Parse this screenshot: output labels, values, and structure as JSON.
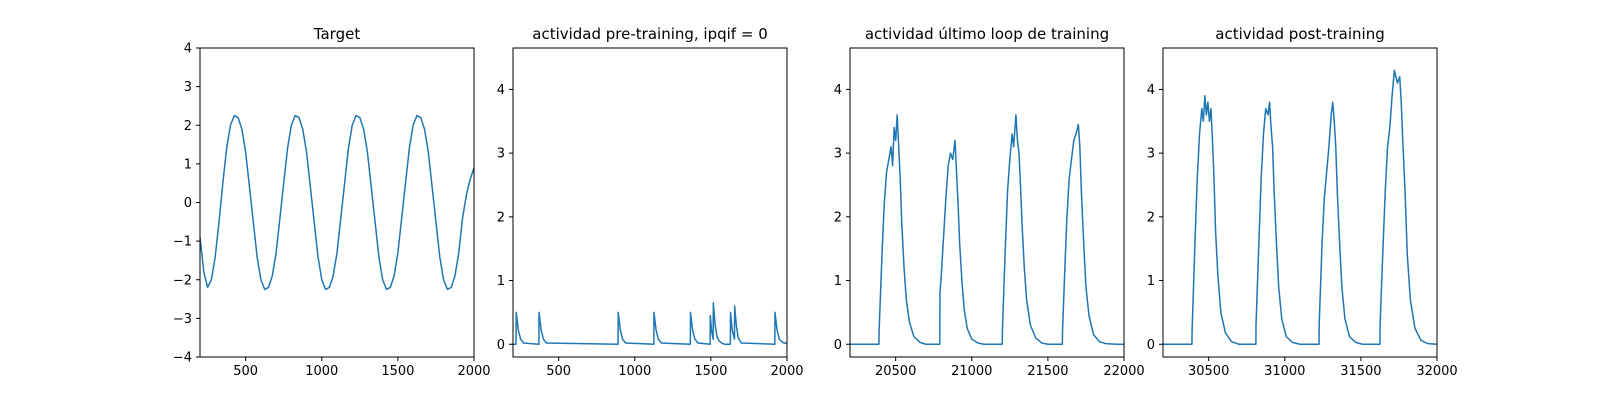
{
  "colors": {
    "series": "#1f77b4",
    "axis": "#000000",
    "background": "#ffffff"
  },
  "chart_data": [
    {
      "type": "line",
      "title": "Target",
      "xlabel": "",
      "ylabel": "",
      "xlim": [
        200,
        2000
      ],
      "ylim": [
        -4,
        4
      ],
      "xticks": [
        500,
        1000,
        1500,
        2000
      ],
      "yticks": [
        -4,
        -3,
        -2,
        -1,
        0,
        1,
        2,
        3,
        4
      ],
      "grid": false,
      "series": [
        {
          "x": [
            200,
            225,
            250,
            275,
            300,
            325,
            350,
            375,
            400,
            425,
            450,
            475,
            500,
            525,
            550,
            575,
            600,
            625,
            650,
            675,
            700,
            725,
            750,
            775,
            800,
            825,
            850,
            875,
            900,
            925,
            950,
            975,
            1000,
            1025,
            1050,
            1075,
            1100,
            1125,
            1150,
            1175,
            1200,
            1225,
            1250,
            1275,
            1300,
            1325,
            1350,
            1375,
            1400,
            1425,
            1450,
            1475,
            1500,
            1525,
            1550,
            1575,
            1600,
            1625,
            1650,
            1675,
            1700,
            1725,
            1750,
            1775,
            1800,
            1825,
            1850,
            1875,
            1900,
            1925,
            1950,
            1975,
            2000
          ],
          "y": [
            -0.9,
            -1.8,
            -2.2,
            -2.0,
            -1.4,
            -0.5,
            0.5,
            1.4,
            2.0,
            2.25,
            2.2,
            1.9,
            1.3,
            0.4,
            -0.5,
            -1.4,
            -2.0,
            -2.25,
            -2.2,
            -1.9,
            -1.3,
            -0.4,
            0.5,
            1.4,
            2.0,
            2.25,
            2.2,
            1.9,
            1.3,
            0.4,
            -0.5,
            -1.4,
            -2.0,
            -2.25,
            -2.2,
            -1.9,
            -1.3,
            -0.4,
            0.5,
            1.4,
            2.0,
            2.25,
            2.2,
            1.9,
            1.3,
            0.4,
            -0.5,
            -1.4,
            -2.0,
            -2.25,
            -2.2,
            -1.9,
            -1.3,
            -0.4,
            0.5,
            1.4,
            2.0,
            2.25,
            2.2,
            1.9,
            1.3,
            0.4,
            -0.5,
            -1.4,
            -2.0,
            -2.25,
            -2.2,
            -1.9,
            -1.3,
            -0.4,
            0.2,
            0.6,
            0.9
          ]
        }
      ]
    },
    {
      "type": "line",
      "title": "actividad pre-training, ipqif = 0",
      "xlabel": "",
      "ylabel": "",
      "xlim": [
        200,
        2000
      ],
      "ylim": [
        -0.2,
        4.65
      ],
      "xticks": [
        500,
        1000,
        1500,
        2000
      ],
      "yticks": [
        0,
        1,
        2,
        3,
        4
      ],
      "grid": false,
      "series": [
        {
          "x": [
            200,
            220,
            221,
            235,
            250,
            270,
            370,
            371,
            385,
            400,
            420,
            890,
            891,
            905,
            920,
            940,
            1125,
            1126,
            1140,
            1155,
            1175,
            1365,
            1366,
            1380,
            1395,
            1415,
            1495,
            1496,
            1505,
            1515,
            1516,
            1528,
            1540,
            1555,
            1570,
            1590,
            1628,
            1629,
            1640,
            1655,
            1656,
            1668,
            1680,
            1700,
            1920,
            1921,
            1935,
            1950,
            1970,
            2000
          ],
          "y": [
            0,
            0,
            0.5,
            0.22,
            0.08,
            0.02,
            0,
            0.5,
            0.22,
            0.08,
            0.02,
            0,
            0.5,
            0.22,
            0.08,
            0.02,
            0,
            0.5,
            0.22,
            0.08,
            0.02,
            0,
            0.5,
            0.22,
            0.08,
            0.02,
            0,
            0.45,
            0.2,
            0.08,
            0.65,
            0.3,
            0.12,
            0.05,
            0.02,
            0,
            0,
            0.5,
            0.22,
            0.08,
            0.6,
            0.28,
            0.1,
            0.02,
            0,
            0.5,
            0.22,
            0.08,
            0.03,
            0.01
          ]
        }
      ]
    },
    {
      "type": "line",
      "title": "actividad último loop de training",
      "xlabel": "",
      "ylabel": "",
      "xlim": [
        20200,
        22000
      ],
      "ylim": [
        -0.2,
        4.65
      ],
      "xticks": [
        20500,
        21000,
        21500,
        22000
      ],
      "yticks": [
        0,
        1,
        2,
        3,
        4
      ],
      "grid": false,
      "series": [
        {
          "x": [
            20200,
            20390,
            20391,
            20410,
            20425,
            20440,
            20455,
            20470,
            20480,
            20490,
            20500,
            20510,
            20520,
            20530,
            20540,
            20555,
            20570,
            20590,
            20620,
            20660,
            20700,
            20790,
            20791,
            20800,
            20815,
            20830,
            20845,
            20860,
            20875,
            20890,
            20900,
            20910,
            20920,
            20935,
            20950,
            20970,
            21000,
            21040,
            21080,
            21200,
            21201,
            21220,
            21235,
            21250,
            21265,
            21275,
            21290,
            21300,
            21310,
            21320,
            21330,
            21345,
            21360,
            21385,
            21420,
            21460,
            21500,
            21595,
            21596,
            21610,
            21625,
            21640,
            21655,
            21670,
            21685,
            21700,
            21710,
            21720,
            21735,
            21750,
            21770,
            21800,
            21840,
            21880,
            21950,
            22000
          ],
          "y": [
            0,
            0,
            0.2,
            1.4,
            2.2,
            2.7,
            2.9,
            3.1,
            2.8,
            3.4,
            3.2,
            3.6,
            3.1,
            2.6,
            1.9,
            1.2,
            0.7,
            0.35,
            0.12,
            0.03,
            0,
            0,
            0.8,
            1.1,
            1.7,
            2.3,
            2.8,
            3.0,
            2.9,
            3.2,
            2.7,
            2.2,
            1.6,
            1.0,
            0.55,
            0.25,
            0.08,
            0.02,
            0,
            0,
            0.2,
            1.5,
            2.4,
            2.9,
            3.3,
            3.1,
            3.6,
            3.2,
            3.0,
            2.5,
            1.9,
            1.2,
            0.7,
            0.3,
            0.1,
            0.02,
            0,
            0,
            0.2,
            1.1,
            2.0,
            2.6,
            2.9,
            3.2,
            3.3,
            3.45,
            3.1,
            2.4,
            1.6,
            0.9,
            0.45,
            0.15,
            0.04,
            0.01,
            0,
            0
          ]
        }
      ]
    },
    {
      "type": "line",
      "title": "actividad post-training",
      "xlabel": "",
      "ylabel": "",
      "xlim": [
        30200,
        32000
      ],
      "ylim": [
        -0.2,
        4.65
      ],
      "xticks": [
        30500,
        31000,
        31500,
        32000
      ],
      "yticks": [
        0,
        1,
        2,
        3,
        4
      ],
      "grid": false,
      "series": [
        {
          "x": [
            30200,
            30390,
            30391,
            30410,
            30425,
            30440,
            30455,
            30465,
            30475,
            30485,
            30495,
            30505,
            30515,
            30525,
            30535,
            30545,
            30560,
            30580,
            30610,
            30650,
            30700,
            30810,
            30811,
            30830,
            30845,
            30860,
            30875,
            30890,
            30900,
            30910,
            30920,
            30930,
            30945,
            30960,
            30980,
            31010,
            31050,
            31100,
            31225,
            31226,
            31245,
            31260,
            31275,
            31290,
            31305,
            31315,
            31325,
            31335,
            31345,
            31360,
            31375,
            31395,
            31425,
            31465,
            31510,
            31625,
            31626,
            31645,
            31660,
            31675,
            31690,
            31705,
            31720,
            31740,
            31755,
            31765,
            31775,
            31790,
            31805,
            31825,
            31855,
            31895,
            31940,
            32000
          ],
          "y": [
            0,
            0,
            0.2,
            1.6,
            2.6,
            3.3,
            3.7,
            3.5,
            3.9,
            3.6,
            3.8,
            3.5,
            3.7,
            3.2,
            2.6,
            1.8,
            1.1,
            0.5,
            0.18,
            0.04,
            0,
            0,
            0.3,
            1.6,
            2.6,
            3.3,
            3.7,
            3.6,
            3.8,
            3.4,
            3.1,
            2.4,
            1.6,
            0.9,
            0.4,
            0.12,
            0.03,
            0,
            0,
            0.3,
            1.6,
            2.3,
            2.7,
            3.1,
            3.6,
            3.8,
            3.5,
            3.1,
            2.4,
            1.6,
            0.9,
            0.4,
            0.12,
            0.03,
            0,
            0,
            0.3,
            1.5,
            2.4,
            3.1,
            3.4,
            3.9,
            4.3,
            4.1,
            4.2,
            3.8,
            3.2,
            2.4,
            1.4,
            0.7,
            0.25,
            0.06,
            0.01,
            0
          ]
        }
      ]
    }
  ]
}
